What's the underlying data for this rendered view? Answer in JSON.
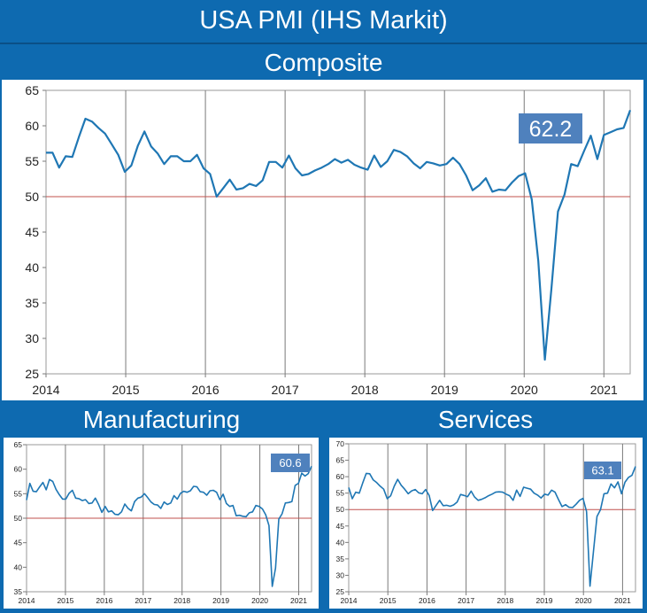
{
  "header": {
    "title": "USA PMI (IHS Markit)",
    "composite_label": "Composite",
    "manufacturing_label": "Manufacturing",
    "services_label": "Services"
  },
  "colors": {
    "line": "#1f77b4",
    "reference": "#c0504d",
    "callout": "#4f81bd",
    "banner": "#0e6ab0"
  },
  "chart_data": [
    {
      "name": "composite",
      "type": "line",
      "x_start": 2014,
      "x_end": 2021.33,
      "x_ticks": [
        "2014",
        "2015",
        "2016",
        "2017",
        "2018",
        "2019",
        "2020",
        "2021"
      ],
      "ylim": [
        25,
        65
      ],
      "y_ticks": [
        "25",
        "30",
        "35",
        "40",
        "45",
        "50",
        "55",
        "60",
        "65"
      ],
      "reference_line": 50,
      "callout": "62.2",
      "values": [
        56.2,
        56.2,
        54.1,
        55.7,
        55.6,
        58.4,
        61.0,
        60.6,
        59.7,
        58.9,
        57.4,
        55.9,
        53.5,
        54.4,
        57.2,
        59.2,
        57.1,
        56.1,
        54.6,
        55.7,
        55.7,
        55.0,
        55.0,
        55.9,
        54.0,
        53.2,
        50.0,
        51.2,
        52.4,
        51.0,
        51.2,
        51.8,
        51.5,
        52.3,
        54.9,
        54.9,
        54.1,
        55.8,
        54.0,
        53.0,
        53.2,
        53.7,
        54.1,
        54.6,
        55.3,
        54.8,
        55.2,
        54.5,
        54.1,
        53.8,
        55.8,
        54.2,
        55.0,
        56.6,
        56.3,
        55.7,
        54.7,
        54.0,
        54.9,
        54.7,
        54.4,
        54.6,
        55.5,
        54.6,
        53.0,
        50.9,
        51.6,
        52.6,
        50.7,
        51.0,
        50.9,
        52.0,
        52.9,
        53.3,
        49.6,
        40.9,
        27.0,
        37.0,
        47.9,
        50.3,
        54.6,
        54.3,
        56.5,
        58.6,
        55.3,
        58.7,
        59.1,
        59.5,
        59.7,
        62.2
      ],
      "grid": "vertical"
    },
    {
      "name": "manufacturing",
      "type": "line",
      "x_start": 2014,
      "x_end": 2021.33,
      "x_ticks": [
        "2014",
        "2015",
        "2016",
        "2017",
        "2018",
        "2019",
        "2020",
        "2021"
      ],
      "ylim": [
        35,
        65
      ],
      "y_ticks": [
        "35",
        "40",
        "45",
        "50",
        "55",
        "60",
        "65"
      ],
      "reference_line": 50,
      "callout": "60.6",
      "values": [
        53.7,
        57.1,
        55.5,
        55.4,
        56.4,
        57.3,
        55.8,
        57.9,
        57.5,
        55.9,
        54.8,
        53.9,
        53.9,
        55.1,
        55.7,
        54.1,
        54.0,
        53.6,
        53.8,
        53.0,
        53.1,
        54.1,
        52.8,
        51.2,
        52.4,
        51.3,
        51.5,
        50.8,
        50.7,
        51.3,
        52.9,
        52.0,
        51.5,
        53.4,
        54.1,
        54.3,
        55.0,
        54.2,
        53.3,
        52.8,
        52.7,
        52.0,
        53.3,
        52.8,
        53.1,
        54.6,
        53.9,
        55.1,
        55.5,
        55.3,
        55.6,
        56.5,
        56.4,
        55.4,
        55.3,
        54.7,
        55.6,
        55.7,
        55.3,
        53.8,
        54.9,
        53.0,
        52.4,
        52.6,
        50.5,
        50.6,
        50.4,
        50.3,
        51.1,
        51.3,
        52.6,
        52.4,
        51.9,
        50.7,
        48.5,
        36.1,
        39.8,
        49.8,
        50.9,
        53.1,
        53.2,
        53.4,
        56.7,
        57.1,
        59.2,
        58.6,
        59.1,
        60.6
      ],
      "grid": "vertical"
    },
    {
      "name": "services",
      "type": "line",
      "x_start": 2014,
      "x_end": 2021.33,
      "x_ticks": [
        "2014",
        "2015",
        "2016",
        "2017",
        "2018",
        "2019",
        "2020",
        "2021"
      ],
      "ylim": [
        25,
        70
      ],
      "y_ticks": [
        "25",
        "30",
        "35",
        "40",
        "45",
        "50",
        "55",
        "60",
        "65",
        "70"
      ],
      "reference_line": 50,
      "callout": "63.1",
      "values": [
        56.7,
        53.3,
        55.3,
        55.0,
        58.1,
        61.0,
        60.9,
        59.0,
        58.2,
        57.1,
        56.2,
        53.3,
        54.2,
        57.1,
        59.2,
        57.4,
        56.2,
        54.8,
        55.7,
        56.1,
        55.1,
        54.8,
        56.1,
        54.3,
        49.7,
        51.3,
        52.8,
        51.2,
        51.3,
        51.0,
        51.4,
        52.3,
        54.6,
        54.3,
        53.9,
        55.6,
        53.8,
        52.8,
        53.1,
        53.6,
        54.2,
        54.7,
        55.3,
        55.4,
        55.3,
        54.7,
        54.2,
        52.8,
        55.9,
        54.0,
        56.8,
        56.5,
        56.2,
        55.0,
        54.4,
        53.5,
        54.7,
        54.4,
        55.9,
        55.3,
        53.0,
        50.9,
        51.5,
        50.7,
        50.6,
        51.6,
        52.8,
        53.4,
        49.4,
        26.7,
        37.5,
        47.9,
        50.0,
        54.8,
        55.0,
        57.8,
        56.6,
        58.4,
        54.8,
        58.3,
        59.8,
        60.4,
        63.1
      ],
      "grid": "vertical"
    }
  ]
}
